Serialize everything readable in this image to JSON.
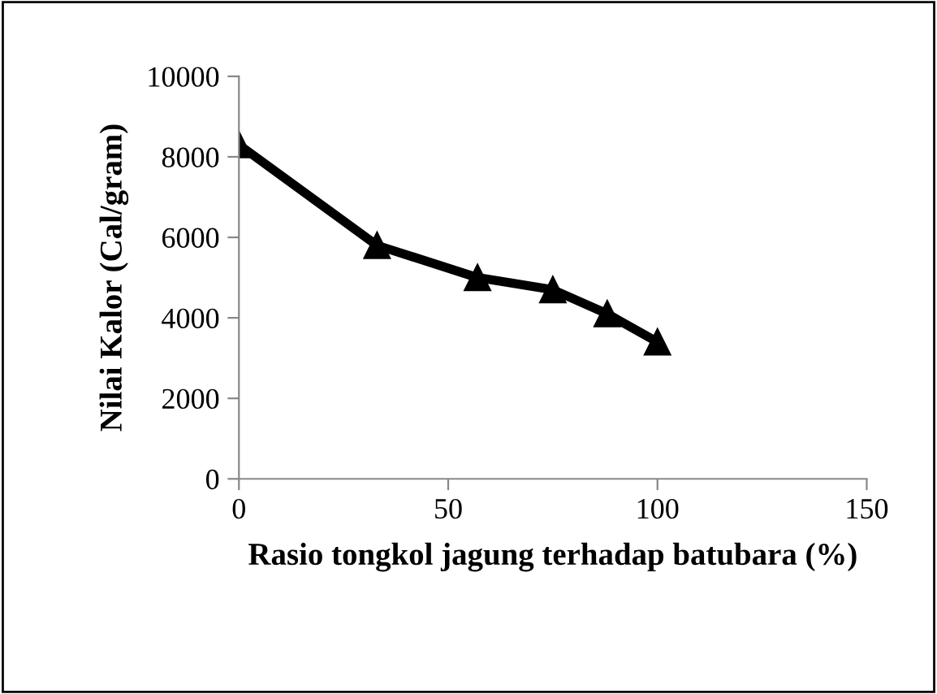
{
  "chart_data": {
    "type": "line",
    "xlabel": "Rasio tongkol jagung terhadap batubara (%)",
    "ylabel": "Nilai Kalor (Cal/gram)",
    "x": [
      0,
      33,
      57,
      75,
      88,
      100
    ],
    "series": [
      {
        "color": "#000000",
        "values": [
          8300,
          5800,
          5000,
          4700,
          4100,
          3400
        ]
      }
    ],
    "xlim": [
      0,
      150
    ],
    "xticks": [
      0,
      50,
      100,
      150
    ],
    "ylim": [
      0,
      10000
    ],
    "yticks": [
      0,
      2000,
      4000,
      6000,
      8000,
      10000
    ],
    "marker": "triangle",
    "line_style": "solid",
    "grid": false,
    "legend": false
  }
}
